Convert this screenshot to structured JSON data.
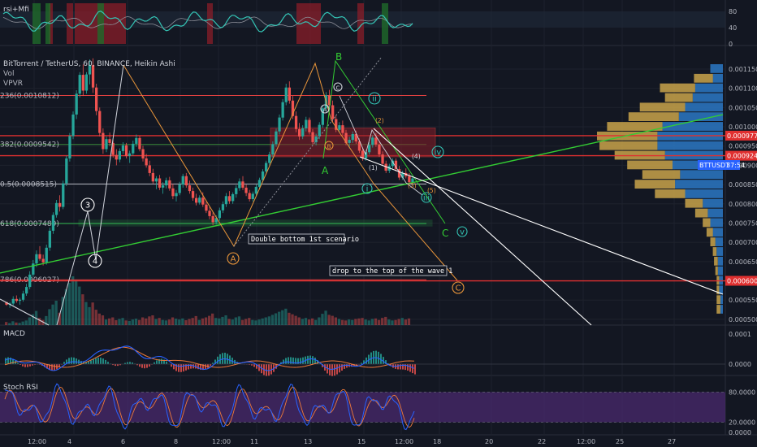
{
  "chart_data": {
    "type": "candlestick",
    "title": "BitTorrent / TetherUS, 60, BINANCE, Heikin Ashi",
    "indicators": [
      "Vol",
      "VPVR"
    ],
    "symbol_badge": {
      "symbol": "BTTUSDT",
      "countdown": "37:54"
    },
    "x_ticks": [
      "12:00",
      "4",
      "6",
      "8",
      "12:00",
      "11",
      "13",
      "15",
      "12:00",
      "18",
      "20",
      "22",
      "12:00",
      "25",
      "27"
    ],
    "y_ticks": [
      "0.0011500",
      "0.0011000",
      "0.0010500",
      "0.0010000",
      "0.0009500",
      "0.0009000",
      "0.0008500",
      "0.0008000",
      "0.0007500",
      "0.0007000",
      "0.0006500",
      "0.0005500",
      "0.0005000"
    ],
    "price_tags": [
      {
        "label": "0.0009770",
        "price": 0.000977
      },
      {
        "label": "0.0009249",
        "price": 0.0009249
      },
      {
        "label": "0.0006000",
        "price": 0.0006
      }
    ],
    "fib_levels": [
      {
        "label": "236(0.0010812)",
        "price": 0.0010812,
        "color": "#e04040"
      },
      {
        "label": "382(0.0009542)",
        "price": 0.0009542,
        "color": "#3a8a3a"
      },
      {
        "label": "0.5(0.0008515)",
        "price": 0.0008515,
        "color": "#b2b5be"
      },
      {
        "label": "618(0.0007489)",
        "price": 0.0007489,
        "color": "#2fb84f"
      },
      {
        "label": "786(0.0006027)",
        "price": 0.0006027,
        "color": "#e04040"
      }
    ],
    "wave_labels": [
      "3",
      "4",
      "A",
      "B",
      "C",
      "A",
      "B",
      "C",
      "i",
      "ii",
      "iii",
      "iv",
      "v",
      "A",
      "B",
      "C",
      "(1)",
      "(2)",
      "(3)",
      "(4)",
      "(5)"
    ],
    "annotations": [
      "Double bottom 1st scenario",
      "drop to the top of the wave 1"
    ],
    "ohlc_hourly": [
      [
        0.000545,
        0.000545,
        0.000535,
        0.000538
      ],
      [
        0.000538,
        0.000545,
        0.00053,
        0.000541
      ],
      [
        0.000541,
        0.00056,
        0.000536,
        0.000553
      ],
      [
        0.000553,
        0.000562,
        0.000543,
        0.000548
      ],
      [
        0.000548,
        0.000556,
        0.000538,
        0.000551
      ],
      [
        0.000551,
        0.000574,
        0.000546,
        0.000567
      ],
      [
        0.000567,
        0.000592,
        0.000561,
        0.000584
      ],
      [
        0.000584,
        0.000625,
        0.000578,
        0.000616
      ],
      [
        0.000616,
        0.000654,
        0.00061,
        0.000645
      ],
      [
        0.000645,
        0.000679,
        0.000636,
        0.000669
      ],
      [
        0.000669,
        0.00069,
        0.000652,
        0.000657
      ],
      [
        0.000657,
        0.000668,
        0.00064,
        0.000648
      ],
      [
        0.000648,
        0.000694,
        0.000642,
        0.000686
      ],
      [
        0.000686,
        0.000738,
        0.000678,
        0.00073
      ],
      [
        0.00073,
        0.000778,
        0.000722,
        0.000771
      ],
      [
        0.000771,
        0.00081,
        0.000764,
        0.000802
      ],
      [
        0.000802,
        0.000822,
        0.00078,
        0.000792
      ],
      [
        0.000792,
        0.00086,
        0.000786,
        0.000853
      ],
      [
        0.000853,
        0.000925,
        0.000846,
        0.000918
      ],
      [
        0.000918,
        0.000984,
        0.00091,
        0.000976
      ],
      [
        0.000976,
        0.00104,
        0.000968,
        0.001032
      ],
      [
        0.001032,
        0.001095,
        0.00102,
        0.001086
      ],
      [
        0.001086,
        0.001142,
        0.001076,
        0.001135
      ],
      [
        0.001135,
        0.001162,
        0.00108,
        0.001094
      ],
      [
        0.001094,
        0.001142,
        0.001086,
        0.001136
      ],
      [
        0.001136,
        0.001175,
        0.00111,
        0.00116
      ],
      [
        0.00116,
        0.001178,
        0.001088,
        0.001102
      ],
      [
        0.001102,
        0.001112,
        0.00103,
        0.001041
      ],
      [
        0.001041,
        0.00105,
        0.000975,
        0.000984
      ],
      [
        0.000984,
        0.000996,
        0.00093,
        0.000942
      ],
      [
        0.000942,
        0.000975,
        0.000934,
        0.000968
      ],
      [
        0.000968,
        0.000985,
        0.00095,
        0.000958
      ],
      [
        0.000958,
        0.000966,
        0.00092,
        0.000927
      ],
      [
        0.000927,
        0.000942,
        0.0009,
        0.000915
      ],
      [
        0.000915,
        0.000944,
        0.000908,
        0.000937
      ],
      [
        0.000937,
        0.00096,
        0.00093,
        0.000952
      ],
      [
        0.000952,
        0.000958,
        0.000918,
        0.000924
      ],
      [
        0.000924,
        0.000938,
        0.000906,
        0.000931
      ],
      [
        0.000931,
        0.000964,
        0.000925,
        0.000956
      ],
      [
        0.000956,
        0.00098,
        0.000948,
        0.000971
      ],
      [
        0.000971,
        0.000976,
        0.000936,
        0.000942
      ],
      [
        0.000942,
        0.000951,
        0.00091,
        0.000918
      ],
      [
        0.000918,
        0.00093,
        0.000894,
        0.0009
      ],
      [
        0.0009,
        0.000912,
        0.000872,
        0.00088
      ],
      [
        0.00088,
        0.000891,
        0.000852,
        0.000858
      ],
      [
        0.000858,
        0.000872,
        0.000838,
        0.000866
      ],
      [
        0.000866,
        0.000875,
        0.000836,
        0.000842
      ],
      [
        0.000842,
        0.000856,
        0.000826,
        0.000848
      ],
      [
        0.000848,
        0.000868,
        0.00084,
        0.000861
      ],
      [
        0.000861,
        0.00087,
        0.000834,
        0.00084
      ],
      [
        0.00084,
        0.000852,
        0.000812,
        0.00082
      ],
      [
        0.00082,
        0.000836,
        0.000806,
        0.000828
      ],
      [
        0.000828,
        0.000857,
        0.000822,
        0.00085
      ],
      [
        0.00085,
        0.000878,
        0.000842,
        0.000872
      ],
      [
        0.000872,
        0.00088,
        0.000842,
        0.000848
      ],
      [
        0.000848,
        0.00086,
        0.000826,
        0.000833
      ],
      [
        0.000833,
        0.000842,
        0.000808,
        0.000815
      ],
      [
        0.000815,
        0.000826,
        0.000796,
        0.000803
      ],
      [
        0.000803,
        0.000822,
        0.000798,
        0.000816
      ],
      [
        0.000816,
        0.00083,
        0.000792,
        0.000798
      ],
      [
        0.000798,
        0.000806,
        0.000776,
        0.000782
      ],
      [
        0.000782,
        0.000792,
        0.00076,
        0.000768
      ],
      [
        0.000768,
        0.000778,
        0.000744,
        0.000752
      ],
      [
        0.000752,
        0.00077,
        0.000746,
        0.000763
      ],
      [
        0.000763,
        0.00079,
        0.000756,
        0.000783
      ],
      [
        0.000783,
        0.000806,
        0.000776,
        0.000799
      ],
      [
        0.000799,
        0.000828,
        0.000792,
        0.00082
      ],
      [
        0.00082,
        0.000833,
        0.0008,
        0.000807
      ],
      [
        0.000807,
        0.00083,
        0.0008,
        0.000825
      ],
      [
        0.000825,
        0.000848,
        0.000816,
        0.000841
      ],
      [
        0.000841,
        0.000866,
        0.000834,
        0.000858
      ],
      [
        0.000858,
        0.000872,
        0.000836,
        0.000842
      ],
      [
        0.000842,
        0.00085,
        0.00082,
        0.000828
      ],
      [
        0.000828,
        0.000836,
        0.000806,
        0.000812
      ],
      [
        0.000812,
        0.000832,
        0.000806,
        0.000826
      ],
      [
        0.000826,
        0.00085,
        0.00082,
        0.000844
      ],
      [
        0.000844,
        0.000868,
        0.000838,
        0.000862
      ],
      [
        0.000862,
        0.00089,
        0.000856,
        0.000884
      ],
      [
        0.000884,
        0.000912,
        0.000876,
        0.000906
      ],
      [
        0.000906,
        0.000935,
        0.000898,
        0.000928
      ],
      [
        0.000928,
        0.000962,
        0.00092,
        0.000955
      ],
      [
        0.000955,
        0.000995,
        0.000948,
        0.000988
      ],
      [
        0.000988,
        0.001032,
        0.00098,
        0.001024
      ],
      [
        0.001024,
        0.001072,
        0.001016,
        0.001064
      ],
      [
        0.001064,
        0.001112,
        0.001056,
        0.001102
      ],
      [
        0.001102,
        0.001118,
        0.00106,
        0.001068
      ],
      [
        0.001068,
        0.00108,
        0.00102,
        0.001028
      ],
      [
        0.001028,
        0.00104,
        0.000986,
        0.000994
      ],
      [
        0.000994,
        0.00101,
        0.000966,
        0.000975
      ],
      [
        0.000975,
        0.001004,
        0.000968,
        0.000996
      ],
      [
        0.000996,
        0.001026,
        0.000988,
        0.001018
      ],
      [
        0.001018,
        0.001024,
        0.00098,
        0.000986
      ],
      [
        0.000986,
        0.000994,
        0.000954,
        0.00096
      ],
      [
        0.00096,
        0.000982,
        0.000952,
        0.000975
      ],
      [
        0.000975,
        0.001012,
        0.000968,
        0.001005
      ],
      [
        0.001005,
        0.001056,
        0.000998,
        0.001048
      ],
      [
        0.001048,
        0.00109,
        0.00104,
        0.001082
      ],
      [
        0.001082,
        0.001096,
        0.00105,
        0.001056
      ],
      [
        0.001056,
        0.001068,
        0.001012,
        0.00102
      ],
      [
        0.00102,
        0.00103,
        0.000986,
        0.000992
      ],
      [
        0.000992,
        0.001012,
        0.000984,
        0.001004
      ],
      [
        0.001004,
        0.001016,
        0.000978,
        0.000984
      ],
      [
        0.000984,
        0.000992,
        0.000952,
        0.000958
      ],
      [
        0.000958,
        0.000974,
        0.000944,
        0.000966
      ],
      [
        0.000966,
        0.000988,
        0.000958,
        0.000981
      ],
      [
        0.000981,
        0.00099,
        0.000956,
        0.000962
      ],
      [
        0.000962,
        0.00097,
        0.000932,
        0.000938
      ],
      [
        0.000938,
        0.000946,
        0.000912,
        0.000918
      ],
      [
        0.000918,
        0.00094,
        0.000912,
        0.000934
      ],
      [
        0.000934,
        0.00096,
        0.000928,
        0.000953
      ],
      [
        0.000953,
        0.000978,
        0.000946,
        0.000972
      ],
      [
        0.000972,
        0.000984,
        0.000948,
        0.000954
      ],
      [
        0.000954,
        0.000962,
        0.000922,
        0.000928
      ],
      [
        0.000928,
        0.000936,
        0.000898,
        0.000904
      ],
      [
        0.000904,
        0.000912,
        0.00088,
        0.000886
      ],
      [
        0.000886,
        0.000904,
        0.00088,
        0.000898
      ],
      [
        0.000898,
        0.000918,
        0.000892,
        0.000912
      ],
      [
        0.000912,
        0.000918,
        0.000884,
        0.00089
      ],
      [
        0.00089,
        0.000898,
        0.000862,
        0.000868
      ],
      [
        0.000868,
        0.000886,
        0.000862,
        0.00088
      ],
      [
        0.00088,
        0.000892,
        0.000866,
        0.000872
      ],
      [
        0.000872,
        0.00088,
        0.00085,
        0.000856
      ],
      [
        0.000856,
        0.000872,
        0.000848,
        0.000866
      ]
    ],
    "volume_hourly": [
      12,
      8,
      15,
      10,
      9,
      14,
      18,
      30,
      42,
      55,
      28,
      20,
      35,
      62,
      80,
      95,
      48,
      110,
      140,
      165,
      190,
      175,
      150,
      120,
      90,
      70,
      88,
      60,
      45,
      38,
      22,
      26,
      30,
      19,
      24,
      28,
      18,
      16,
      22,
      25,
      20,
      30,
      26,
      34,
      38,
      24,
      28,
      20,
      18,
      22,
      30,
      25,
      22,
      26,
      19,
      24,
      28,
      35,
      20,
      26,
      30,
      36,
      45,
      28,
      26,
      32,
      38,
      24,
      22,
      30,
      34,
      20,
      24,
      28,
      20,
      18,
      22,
      26,
      30,
      34,
      40,
      46,
      52,
      58,
      64,
      48,
      42,
      36,
      30,
      24,
      28,
      22,
      26,
      20,
      30,
      44,
      56,
      40,
      36,
      30,
      24,
      20,
      18,
      22,
      20,
      24,
      26,
      28,
      22,
      18,
      24,
      26,
      20,
      28,
      32,
      22,
      18,
      20,
      24,
      28,
      22,
      26
    ],
    "vpvr": [
      {
        "price": 0.00115,
        "up": 0.0,
        "down": 0.1
      },
      {
        "price": 0.001125,
        "up": 0.15,
        "down": 0.08
      },
      {
        "price": 0.0011,
        "up": 0.28,
        "down": 0.22
      },
      {
        "price": 0.001075,
        "up": 0.22,
        "down": 0.24
      },
      {
        "price": 0.00105,
        "up": 0.36,
        "down": 0.3
      },
      {
        "price": 0.001025,
        "up": 0.4,
        "down": 0.35
      },
      {
        "price": 0.001,
        "up": 0.44,
        "down": 0.48
      },
      {
        "price": 0.000975,
        "up": 0.48,
        "down": 0.52
      },
      {
        "price": 0.00095,
        "up": 0.46,
        "down": 0.52
      },
      {
        "price": 0.000925,
        "up": 0.4,
        "down": 0.46
      },
      {
        "price": 0.0009,
        "up": 0.36,
        "down": 0.4
      },
      {
        "price": 0.000875,
        "up": 0.3,
        "down": 0.34
      },
      {
        "price": 0.00085,
        "up": 0.32,
        "down": 0.38
      },
      {
        "price": 0.000825,
        "up": 0.24,
        "down": 0.3
      },
      {
        "price": 0.0008,
        "up": 0.14,
        "down": 0.16
      },
      {
        "price": 0.000775,
        "up": 0.1,
        "down": 0.12
      },
      {
        "price": 0.00075,
        "up": 0.06,
        "down": 0.1
      },
      {
        "price": 0.000725,
        "up": 0.05,
        "down": 0.08
      },
      {
        "price": 0.0007,
        "up": 0.04,
        "down": 0.06
      },
      {
        "price": 0.000675,
        "up": 0.03,
        "down": 0.05
      },
      {
        "price": 0.00065,
        "up": 0.03,
        "down": 0.04
      },
      {
        "price": 0.000625,
        "up": 0.02,
        "down": 0.04
      },
      {
        "price": 0.0006,
        "up": 0.02,
        "down": 0.03
      },
      {
        "price": 0.000575,
        "up": 0.02,
        "down": 0.03
      },
      {
        "price": 0.00055,
        "up": 0.03,
        "down": 0.02
      },
      {
        "price": 0.000525,
        "up": 0.03,
        "down": 0.02
      }
    ]
  },
  "panes": {
    "rsi": {
      "title": "rsi+Mfi",
      "ticks": [
        "80",
        "40",
        "0"
      ],
      "levels": [
        80,
        40
      ]
    },
    "macd": {
      "title": "MACD",
      "ticks": [
        "0.0001",
        "0.0000"
      ]
    },
    "stoch": {
      "title": "Stoch RSI",
      "ticks": [
        "80.0000",
        "20.0000",
        "0.0000"
      ],
      "levels": [
        80,
        20
      ]
    }
  },
  "colors": {
    "background": "#131722",
    "up": "#26a69a",
    "down": "#ef5350",
    "fib_red": "#e04040",
    "trend_green": "#33cc33",
    "wave_orange": "#e8953a",
    "wave_teal": "#34c4b5",
    "stoch_fill": "#4a2a6e",
    "badge_blue": "#2962ff"
  }
}
